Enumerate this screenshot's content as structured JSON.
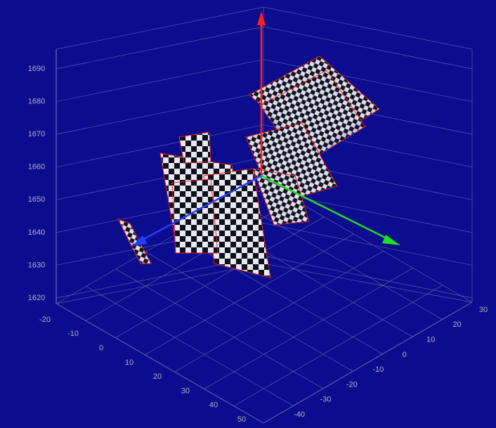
{
  "z_axis": {
    "ticks": [
      "1690",
      "1680",
      "1670",
      "1660",
      "1650",
      "1640",
      "1630",
      "1620"
    ]
  },
  "x_axis": {
    "ticks": [
      "-20",
      "-10",
      "0",
      "10",
      "20",
      "30",
      "40",
      "50"
    ]
  },
  "y_axis": {
    "ticks": [
      "30",
      "20",
      "10",
      "0",
      "-10",
      "-20",
      "-30",
      "-40"
    ]
  }
}
